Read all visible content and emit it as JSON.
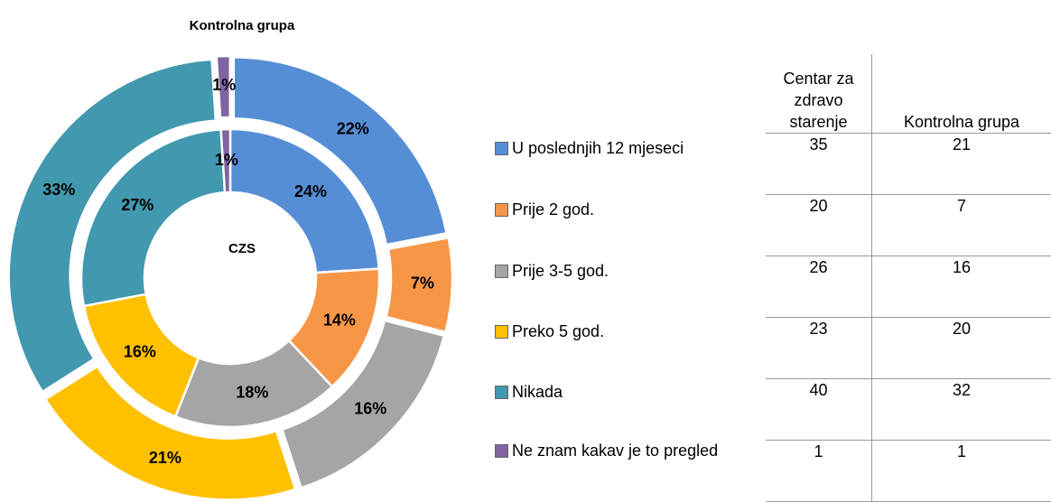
{
  "chart_data": {
    "type": "donut",
    "categories": [
      "U poslednjih 12 mjeseci",
      "Prije 2 god.",
      "Prije 3-5 god.",
      "Preko 5 god.",
      "Nikada",
      "Ne znam kakav je to pregled"
    ],
    "colors": [
      "#558ed5",
      "#f79646",
      "#a5a5a5",
      "#ffc000",
      "#4198af",
      "#8064a2"
    ],
    "series": [
      {
        "name": "CZS",
        "values": [
          24,
          14,
          18,
          16,
          27,
          1
        ],
        "value_labels": [
          "24%",
          "14%",
          "18%",
          "16%",
          "27%",
          "1%"
        ]
      },
      {
        "name": "Kontrolna grupa",
        "values": [
          22,
          7,
          16,
          21,
          33,
          1
        ],
        "value_labels": [
          "22%",
          "7%",
          "16%",
          "21%",
          "33%",
          "1%"
        ]
      }
    ]
  },
  "table": {
    "columns": [
      "Centar za zdravo starenje",
      "Kontrolna grupa"
    ],
    "rows": [
      [
        35,
        21
      ],
      [
        20,
        7
      ],
      [
        26,
        16
      ],
      [
        23,
        20
      ],
      [
        40,
        32
      ],
      [
        1,
        1
      ]
    ]
  }
}
